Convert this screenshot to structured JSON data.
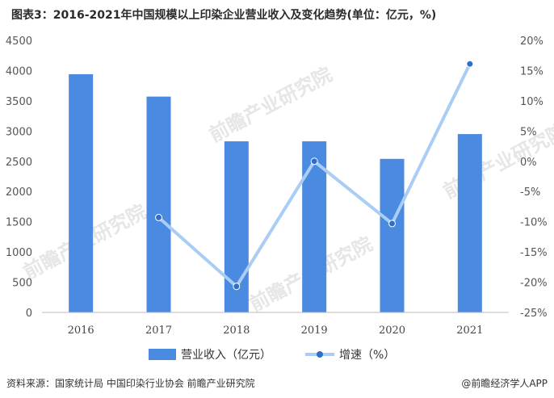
{
  "title": "图表3：2016-2021年中国规模以上印染企业营业收入及变化趋势(单位：亿元，%)",
  "chart_data": {
    "type": "bar",
    "categories": [
      "2016",
      "2017",
      "2018",
      "2019",
      "2020",
      "2021"
    ],
    "series": [
      {
        "name": "营业收入（亿元）",
        "type": "bar",
        "axis": "left",
        "color": "#4a8ae0",
        "values": [
          3940,
          3570,
          2830,
          2830,
          2540,
          2950
        ]
      },
      {
        "name": "增速（%）",
        "type": "line",
        "axis": "right",
        "color": "#a9cdf5",
        "values": [
          null,
          -9.3,
          -20.7,
          0,
          -10.3,
          16.1
        ]
      }
    ],
    "y_left": {
      "min": 0,
      "max": 4500,
      "step": 500,
      "ticks": [
        "0",
        "500",
        "1000",
        "1500",
        "2000",
        "2500",
        "3000",
        "3500",
        "4000",
        "4500"
      ]
    },
    "y_right": {
      "min": -25,
      "max": 20,
      "step": 5,
      "ticks": [
        "-25%",
        "-20%",
        "-15%",
        "-10%",
        "-5%",
        "0%",
        "5%",
        "10%",
        "15%",
        "20%"
      ]
    },
    "grid": false,
    "legend_position": "bottom"
  },
  "footer": {
    "source": "资料来源：国家统计局 中国印染行业协会 前瞻产业研究院",
    "brand": "@前瞻经济学人APP"
  },
  "watermark": "前瞻产业研究院"
}
